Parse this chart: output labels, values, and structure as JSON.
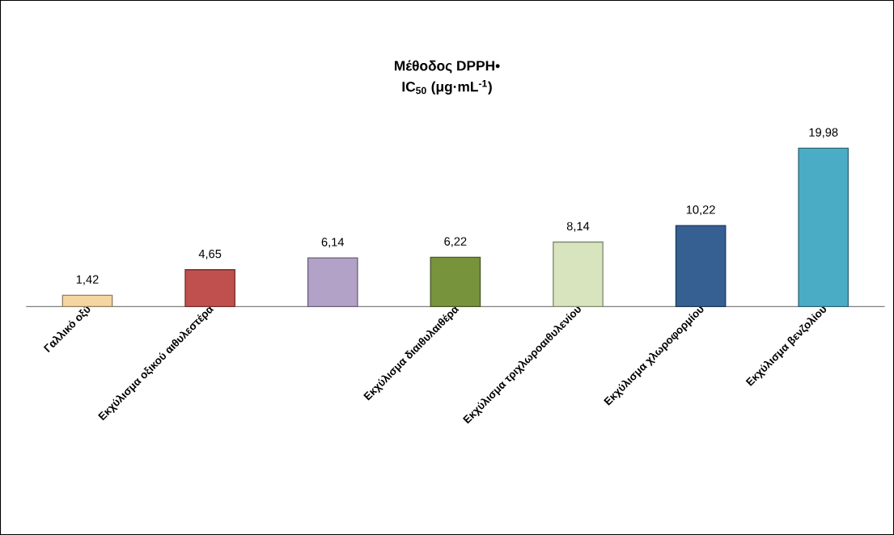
{
  "chart_data": {
    "type": "bar",
    "title": "Μέθοδος DPPH•",
    "subtitle": "IC$_{50}$ (μg·mL$^{-1}$)",
    "categories": [
      "Γαλλικό οξύ",
      "Εκχύλισμα οξικού αιθυλεστέρα",
      null,
      "Εκχύλισμα διαιθυλαιθέρα",
      "Εκχύλισμα τριχλωροαιθυλενίου",
      "Εκχύλισμα χλωροφορμίου",
      "Εκχύλισμα βενζολίου"
    ],
    "values": [
      1.42,
      4.65,
      6.14,
      6.22,
      8.14,
      10.22,
      19.98
    ],
    "colors": [
      "#f5d5a0",
      "#c0504d",
      "#b3a2c7",
      "#77933c",
      "#d7e4bd",
      "#366092",
      "#4bacc6"
    ],
    "value_labels": [
      "1,42",
      "4,65",
      "6,14",
      "6,22",
      "8,14",
      "10,22",
      "19,98"
    ]
  }
}
